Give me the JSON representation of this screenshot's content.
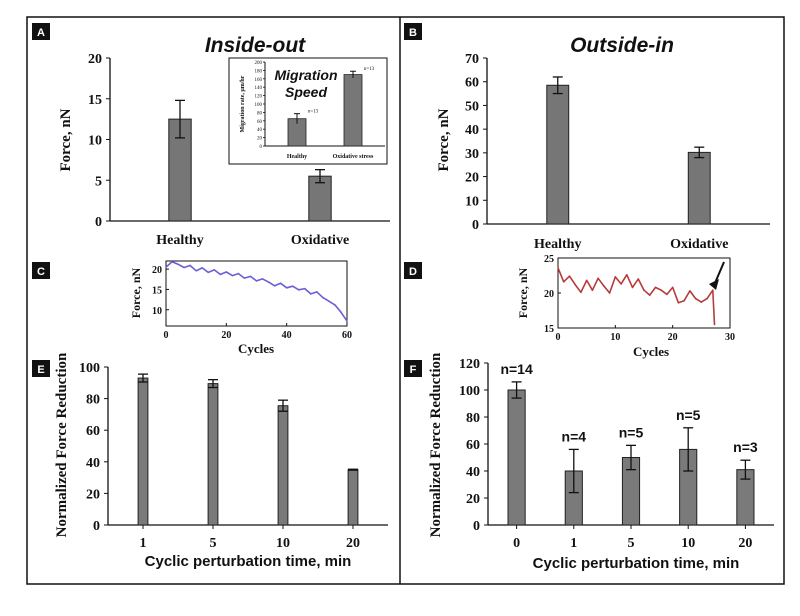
{
  "chart_data": [
    {
      "id": "A",
      "type": "bar",
      "panel_label": "A",
      "title": "Inside-out",
      "ylabel": "Force, nN",
      "xlabel": "",
      "categories": [
        "Healthy",
        "Oxidative"
      ],
      "values": [
        12.5,
        5.5
      ],
      "errors": [
        2.3,
        0.8
      ],
      "ylim": [
        0,
        20
      ],
      "yticks": [
        "0",
        "5",
        "10",
        "15",
        "20"
      ]
    },
    {
      "id": "A_inset",
      "type": "bar",
      "title": "Migration Speed",
      "ylabel": "Migration rate, μm/hr",
      "xlabel": "",
      "categories": [
        "Healthy",
        "Oxidative stress"
      ],
      "values": [
        65,
        170
      ],
      "errors": [
        12,
        8
      ],
      "ylim": [
        0,
        200
      ],
      "yticks": [
        "0",
        "20",
        "40",
        "60",
        "80",
        "100",
        "120",
        "140",
        "160",
        "180",
        "200"
      ],
      "annotations": [
        "n=13",
        "n=13"
      ]
    },
    {
      "id": "B",
      "type": "bar",
      "panel_label": "B",
      "title": "Outside-in",
      "ylabel": "Force, nN",
      "xlabel": "",
      "categories": [
        "Healthy",
        "Oxidative"
      ],
      "values": [
        58.5,
        30.2
      ],
      "errors": [
        3.5,
        2.2
      ],
      "ylim": [
        0,
        70
      ],
      "yticks": [
        "0",
        "10",
        "20",
        "30",
        "40",
        "50",
        "60",
        "70"
      ]
    },
    {
      "id": "C",
      "type": "line",
      "panel_label": "C",
      "ylabel": "Force, nN",
      "xlabel": "Cycles",
      "xlim": [
        0,
        60
      ],
      "ylim": [
        6,
        22
      ],
      "xticks": [
        "0",
        "20",
        "40",
        "60"
      ],
      "yticks": [
        "10",
        "15",
        "20"
      ],
      "x": [
        0,
        2,
        4,
        6,
        8,
        10,
        12,
        14,
        16,
        18,
        20,
        22,
        24,
        26,
        28,
        30,
        32,
        34,
        36,
        38,
        40,
        42,
        44,
        46,
        48,
        50,
        52,
        54,
        56,
        58,
        60
      ],
      "y": [
        20.5,
        21.8,
        21.2,
        20.4,
        20.9,
        19.6,
        20.3,
        19.2,
        19.8,
        18.7,
        19.3,
        18.4,
        18.9,
        17.8,
        18.2,
        17.1,
        17.6,
        16.8,
        15.9,
        16.5,
        15.4,
        15.8,
        14.9,
        15.2,
        13.9,
        14.4,
        13.0,
        12.1,
        11.2,
        9.4,
        7.2
      ],
      "color": "#6b5fd6"
    },
    {
      "id": "D",
      "type": "line",
      "panel_label": "D",
      "ylabel": "Force, nN",
      "xlabel": "Cycles",
      "xlim": [
        0,
        30
      ],
      "ylim": [
        15,
        25
      ],
      "xticks": [
        "0",
        "10",
        "20",
        "30"
      ],
      "yticks": [
        "15",
        "20",
        "25"
      ],
      "x": [
        0,
        1,
        2,
        3,
        4,
        5,
        6,
        7,
        8,
        9,
        10,
        11,
        12,
        13,
        14,
        15,
        16,
        17,
        18,
        19,
        20,
        21,
        22,
        23,
        24,
        25,
        26,
        27,
        27.3
      ],
      "y": [
        23.6,
        21.6,
        22.4,
        21.2,
        20.1,
        21.8,
        20.4,
        22.1,
        21.0,
        20.0,
        22.3,
        21.3,
        22.6,
        20.8,
        22.0,
        20.4,
        19.7,
        20.8,
        20.4,
        19.8,
        20.8,
        18.6,
        18.9,
        20.3,
        19.2,
        18.7,
        19.2,
        20.4,
        15.5
      ],
      "color": "#b83a3a",
      "annotations": [
        "arrow pointing at final cycle"
      ]
    },
    {
      "id": "E",
      "type": "bar",
      "panel_label": "E",
      "ylabel": "Normalized Force Reduction",
      "xlabel": "Cyclic perturbation time, min",
      "categories": [
        "1",
        "5",
        "10",
        "20"
      ],
      "values": [
        93,
        89.5,
        75.5,
        35
      ],
      "errors": [
        2.5,
        2.5,
        3.5,
        0.3
      ],
      "ylim": [
        0,
        100
      ],
      "yticks": [
        "0",
        "20",
        "40",
        "60",
        "80",
        "100"
      ]
    },
    {
      "id": "F",
      "type": "bar",
      "panel_label": "F",
      "ylabel": "Normalized Force Reduction",
      "xlabel": "Cyclic perturbation time, min",
      "categories": [
        "0",
        "1",
        "5",
        "10",
        "20"
      ],
      "values": [
        100,
        40,
        50,
        56,
        41
      ],
      "errors": [
        6,
        16,
        9,
        16,
        7
      ],
      "sample_sizes": [
        "n=14",
        "n=4",
        "n=5",
        "n=5",
        "n=3"
      ],
      "ylim": [
        0,
        120
      ],
      "yticks": [
        "0",
        "20",
        "40",
        "60",
        "80",
        "100",
        "120"
      ]
    }
  ]
}
